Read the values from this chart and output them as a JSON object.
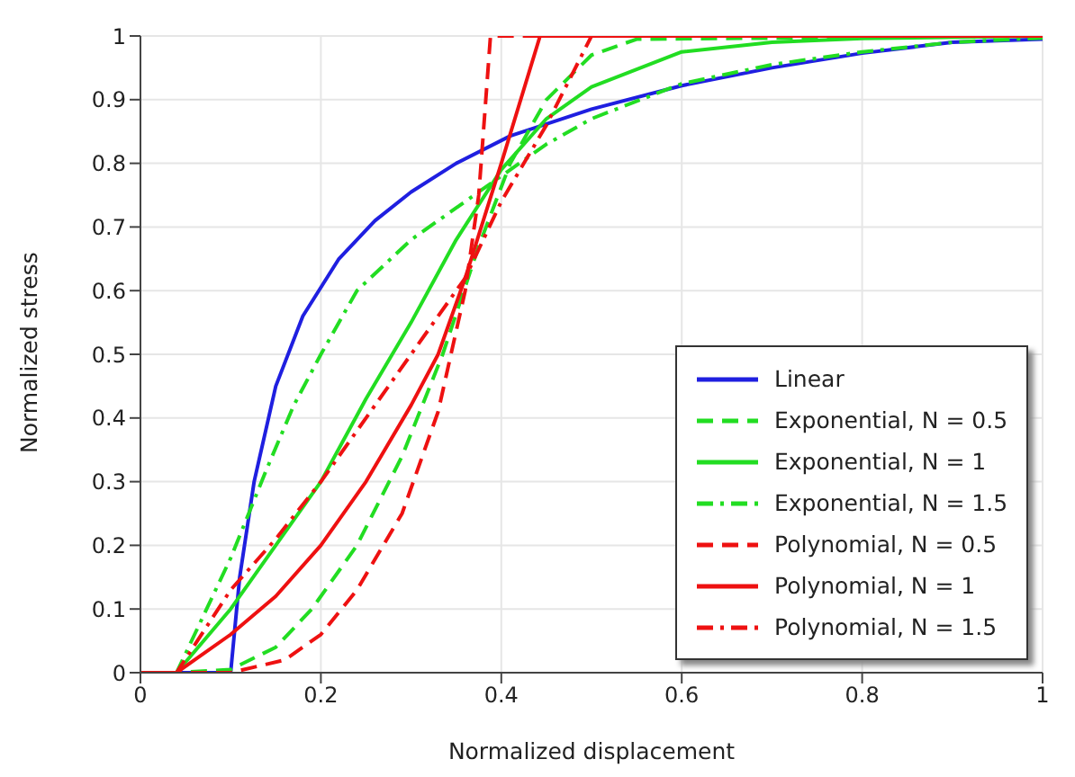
{
  "chart_data": {
    "type": "line",
    "xlabel": "Normalized displacement",
    "ylabel": "Normalized stress",
    "xlim": [
      0,
      1
    ],
    "ylim": [
      0,
      1
    ],
    "xticks": [
      0,
      0.2,
      0.4,
      0.6,
      0.8,
      1
    ],
    "yticks": [
      0,
      0.1,
      0.2,
      0.3,
      0.4,
      0.5,
      0.6,
      0.7,
      0.8,
      0.9,
      1
    ],
    "grid": true,
    "legend": "bottom right",
    "marker": "none",
    "series": [
      {
        "name": "Linear",
        "color": "#1f1fe0",
        "line_style": "solid",
        "x": [
          0,
          0.1,
          0.11,
          0.126,
          0.15,
          0.18,
          0.22,
          0.26,
          0.3,
          0.35,
          0.41,
          0.5,
          0.6,
          0.7,
          0.8,
          0.9,
          1
        ],
        "values": [
          0,
          0,
          0.15,
          0.3,
          0.45,
          0.56,
          0.65,
          0.71,
          0.755,
          0.8,
          0.843,
          0.885,
          0.922,
          0.95,
          0.973,
          0.99,
          0.995
        ]
      },
      {
        "name": "Exponential, N = 0.5",
        "color": "#22dd22",
        "line_style": "dashed",
        "x": [
          0,
          0.04,
          0.1,
          0.15,
          0.19,
          0.24,
          0.29,
          0.335,
          0.375,
          0.41,
          0.45,
          0.5,
          0.55,
          1
        ],
        "values": [
          0,
          0,
          0.005,
          0.04,
          0.1,
          0.2,
          0.34,
          0.5,
          0.67,
          0.8,
          0.9,
          0.97,
          0.995,
          1
        ]
      },
      {
        "name": "Exponential, N = 1",
        "color": "#22dd22",
        "line_style": "solid",
        "x": [
          0,
          0.04,
          0.1,
          0.15,
          0.2,
          0.25,
          0.3,
          0.35,
          0.4,
          0.45,
          0.5,
          0.6,
          0.7,
          0.8,
          1
        ],
        "values": [
          0,
          0,
          0.1,
          0.2,
          0.3,
          0.43,
          0.55,
          0.68,
          0.79,
          0.87,
          0.92,
          0.975,
          0.99,
          0.996,
          1
        ]
      },
      {
        "name": "Exponential, N = 1.5",
        "color": "#22dd22",
        "line_style": "dashdot",
        "x": [
          0,
          0.04,
          0.06,
          0.1,
          0.14,
          0.17,
          0.2,
          0.24,
          0.3,
          0.35,
          0.4,
          0.45,
          0.5,
          0.6,
          0.7,
          0.8,
          0.9,
          1
        ],
        "values": [
          0,
          0,
          0.06,
          0.18,
          0.32,
          0.42,
          0.5,
          0.6,
          0.68,
          0.73,
          0.78,
          0.83,
          0.87,
          0.925,
          0.955,
          0.975,
          0.99,
          0.997
        ]
      },
      {
        "name": "Polynomial, N = 0.5",
        "color": "#ee1111",
        "line_style": "dashed",
        "x": [
          0,
          0.1,
          0.16,
          0.2,
          0.24,
          0.29,
          0.33,
          0.36,
          0.375,
          0.388,
          1
        ],
        "values": [
          0,
          0,
          0.02,
          0.06,
          0.13,
          0.25,
          0.41,
          0.6,
          0.75,
          1,
          1
        ]
      },
      {
        "name": "Polynomial, N = 1",
        "color": "#ee1111",
        "line_style": "solid",
        "x": [
          0,
          0.04,
          0.1,
          0.15,
          0.2,
          0.25,
          0.3,
          0.33,
          0.36,
          0.4,
          0.443,
          1
        ],
        "values": [
          0,
          0,
          0.06,
          0.12,
          0.2,
          0.3,
          0.42,
          0.5,
          0.62,
          0.8,
          1,
          1
        ]
      },
      {
        "name": "Polynomial, N = 1.5",
        "color": "#ee1111",
        "line_style": "dashdot",
        "x": [
          0,
          0.04,
          0.1,
          0.15,
          0.2,
          0.25,
          0.3,
          0.36,
          0.4,
          0.45,
          0.5,
          1
        ],
        "values": [
          0,
          0,
          0.13,
          0.21,
          0.3,
          0.4,
          0.5,
          0.62,
          0.74,
          0.86,
          1,
          1
        ]
      }
    ]
  }
}
